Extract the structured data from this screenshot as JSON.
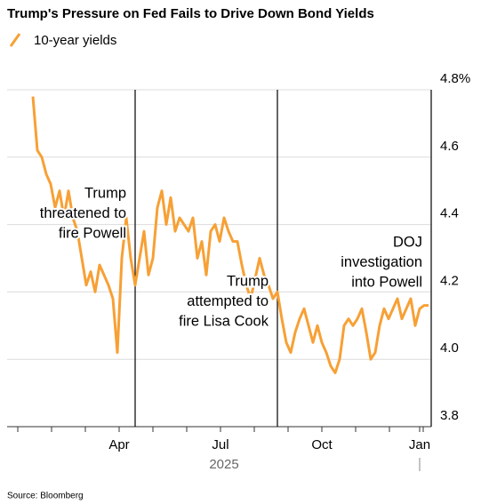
{
  "chart_data": {
    "type": "line",
    "title": "Trump's Pressure on Fed Fails to Drive Down Bond Yields",
    "series": [
      {
        "name": "10-year yields",
        "color": "#f7a035",
        "values": [
          4.78,
          4.62,
          4.6,
          4.55,
          4.52,
          4.45,
          4.5,
          4.42,
          4.5,
          4.42,
          4.38,
          4.3,
          4.22,
          4.26,
          4.2,
          4.28,
          4.25,
          4.22,
          4.18,
          4.02,
          4.3,
          4.42,
          4.3,
          4.22,
          4.3,
          4.38,
          4.25,
          4.3,
          4.45,
          4.5,
          4.4,
          4.48,
          4.38,
          4.42,
          4.4,
          4.38,
          4.42,
          4.3,
          4.35,
          4.25,
          4.38,
          4.4,
          4.35,
          4.42,
          4.38,
          4.35,
          4.35,
          4.28,
          4.22,
          4.18,
          4.24,
          4.3,
          4.25,
          4.22,
          4.18,
          4.2,
          4.12,
          4.05,
          4.02,
          4.08,
          4.12,
          4.15,
          4.1,
          4.05,
          4.1,
          4.05,
          4.02,
          3.98,
          3.96,
          4.0,
          4.1,
          4.12,
          4.1,
          4.12,
          4.15,
          4.08,
          4.0,
          4.02,
          4.1,
          4.15,
          4.12,
          4.15,
          4.18,
          4.12,
          4.15,
          4.18,
          4.1,
          4.15,
          4.16,
          4.16
        ]
      }
    ],
    "xlim": [
      -5.8,
      92
    ],
    "xticks": [
      {
        "value": 19.4,
        "label": "Apr"
      },
      {
        "value": 42.2,
        "label": "Jul"
      },
      {
        "value": 65,
        "label": "Oct"
      },
      {
        "value": 87,
        "label": "Jan"
      }
    ],
    "xlabel": "2025",
    "ylim": [
      3.8,
      4.8
    ],
    "yticks": [
      {
        "value": 4.8,
        "label": "4.8%"
      },
      4.6,
      4.4,
      4.2,
      {
        "value": 4.0,
        "label": "4.0"
      },
      3.8
    ],
    "grid": true,
    "annotations": [
      {
        "x": 23,
        "lines": [
          "Trump",
          "threatened to",
          "fire Powell"
        ]
      },
      {
        "x": 55,
        "lines": [
          "Trump",
          "attempted to",
          "fire Lisa Cook"
        ]
      },
      {
        "x": 89.6,
        "lines": [
          "DOJ",
          "investigation",
          "into Powell"
        ]
      }
    ],
    "source": "Source: Bloomberg"
  }
}
